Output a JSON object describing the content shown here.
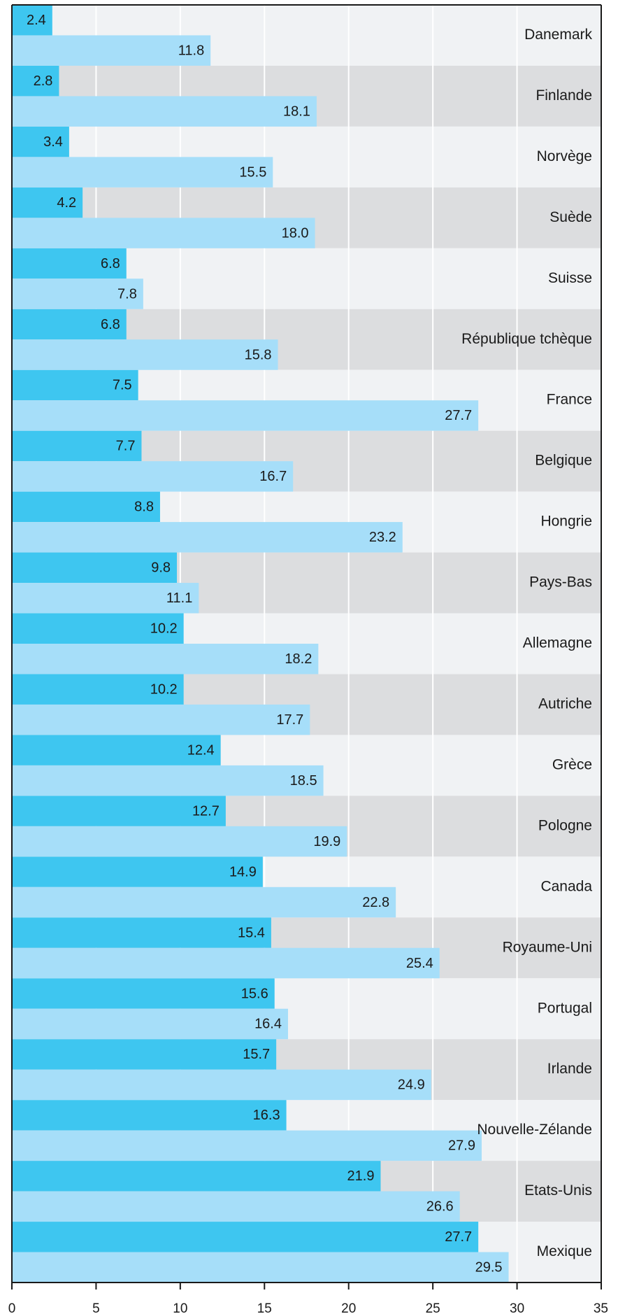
{
  "chart_data": {
    "type": "barh-grouped",
    "categories": [
      "Danemark",
      "Finlande",
      "Norvège",
      "Suède",
      "Suisse",
      "République tchèque",
      "France",
      "Belgique",
      "Hongrie",
      "Pays-Bas",
      "Allemagne",
      "Autriche",
      "Grèce",
      "Pologne",
      "Canada",
      "Royaume-Uni",
      "Portugal",
      "Irlande",
      "Nouvelle-Zélande",
      "Etats-Unis",
      "Mexique"
    ],
    "series": [
      {
        "color": "#3ec6f0",
        "values": [
          2.4,
          2.8,
          3.4,
          4.2,
          6.8,
          6.8,
          7.5,
          7.7,
          8.8,
          9.8,
          10.2,
          10.2,
          12.4,
          12.7,
          14.9,
          15.4,
          15.6,
          15.7,
          16.3,
          21.9,
          27.7
        ],
        "value_labels": [
          "2.4",
          "2.8",
          "3.4",
          "4.2",
          "6.8",
          "6.8",
          "7.5",
          "7.7",
          "8.8",
          "9.8",
          "10.2",
          "10.2",
          "12.4",
          "12.7",
          "14.9",
          "15.4",
          "15.6",
          "15.7",
          "16.3",
          "21.9",
          "27.7"
        ]
      },
      {
        "color": "#a6def9",
        "values": [
          11.8,
          18.1,
          15.5,
          18.0,
          7.8,
          15.8,
          27.7,
          16.7,
          23.2,
          11.1,
          18.2,
          17.7,
          18.5,
          19.9,
          22.8,
          25.4,
          16.4,
          24.9,
          27.9,
          26.6,
          29.5
        ],
        "value_labels": [
          "11.8",
          "18.1",
          "15.5",
          "18.0",
          "7.8",
          "15.8",
          "27.7",
          "16.7",
          "23.2",
          "11.1",
          "18.2",
          "17.7",
          "18.5",
          "19.9",
          "22.8",
          "25.4",
          "16.4",
          "24.9",
          "27.9",
          "26.6",
          "29.5"
        ]
      }
    ],
    "xlim": [
      0,
      35
    ],
    "xticks": [
      0,
      5,
      10,
      15,
      20,
      25,
      30,
      35
    ],
    "grid": true,
    "band_colors": [
      "#f0f2f4",
      "#dcdddf"
    ]
  }
}
